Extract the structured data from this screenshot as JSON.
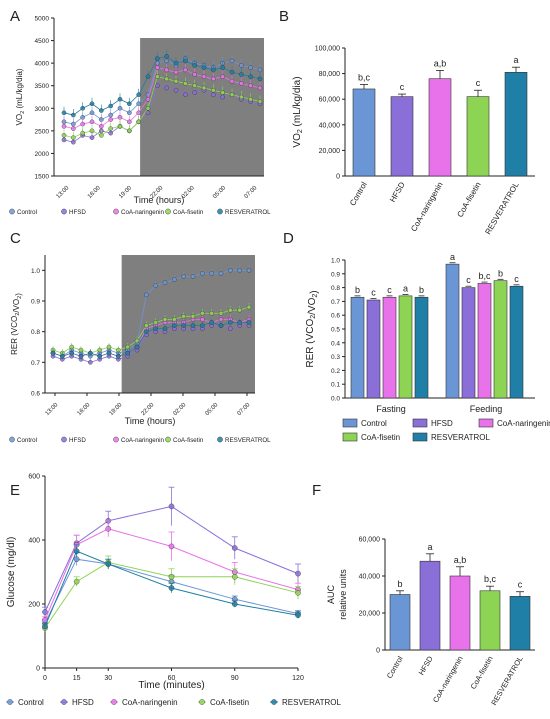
{
  "figure": {
    "colors": {
      "Control": "#6b96d6",
      "HFSD": "#8b6fd8",
      "CoA-naringenin": "#e872ea",
      "CoA-fisetin": "#8ed454",
      "RESVERATROL": "#1f7fa6",
      "shade": "#7f7f7f"
    }
  },
  "chart_data": [
    {
      "panel": "A",
      "type": "line",
      "ylabel": "VO2 (mL/kg/dia)",
      "xlabel": "Time (hours)",
      "ylim": [
        1500,
        5000
      ],
      "yticks": [
        1500,
        2000,
        2500,
        3000,
        3500,
        4000,
        4500,
        5000
      ],
      "xticks": [
        "13:00",
        "16:00",
        "19:00",
        "22:00",
        "02:00",
        "05:00",
        "07:00"
      ],
      "shaded_from": "19:00",
      "legend": [
        "Control",
        "HFSD",
        "CoA-naringenin",
        "CoA-fisetin",
        "RESVERATROL"
      ],
      "series": [
        {
          "name": "Control",
          "values": [
            2700,
            2650,
            2800,
            2900,
            2750,
            2850,
            3000,
            2900,
            3100,
            3300,
            4000,
            4050,
            3950,
            4100,
            4000,
            3950,
            3900,
            4000,
            4050,
            3950,
            3900,
            3850
          ]
        },
        {
          "name": "HFSD",
          "values": [
            2300,
            2250,
            2400,
            2350,
            2500,
            2450,
            2600,
            2500,
            2700,
            2900,
            3500,
            3450,
            3400,
            3300,
            3350,
            3400,
            3300,
            3250,
            3300,
            3200,
            3150,
            3100
          ]
        },
        {
          "name": "CoA-naringenin",
          "values": [
            2600,
            2550,
            2650,
            2700,
            2600,
            2750,
            2800,
            2700,
            2900,
            3200,
            3900,
            3850,
            3800,
            3850,
            3750,
            3700,
            3650,
            3700,
            3600,
            3550,
            3500,
            3450
          ]
        },
        {
          "name": "CoA-fisetin",
          "values": [
            2400,
            2350,
            2450,
            2500,
            2400,
            2550,
            2600,
            2500,
            2700,
            3000,
            3700,
            3650,
            3600,
            3550,
            3500,
            3450,
            3400,
            3350,
            3300,
            3250,
            3200,
            3150
          ]
        },
        {
          "name": "RESVERATROL",
          "values": [
            2900,
            2850,
            3000,
            3100,
            2950,
            3050,
            3200,
            3100,
            3300,
            3700,
            4100,
            4150,
            4000,
            4050,
            3950,
            3900,
            3850,
            3900,
            3800,
            3750,
            3700,
            3650
          ]
        }
      ]
    },
    {
      "panel": "B",
      "type": "bar",
      "ylabel": "VO2 (mL/kg/dia)",
      "ylim": [
        0,
        100000
      ],
      "yticks": [
        "0",
        "20,000",
        "40,000",
        "60,000",
        "80,000",
        "100,000"
      ],
      "categories": [
        "Control",
        "HFSD",
        "CoA-naringenin",
        "CoA-fisetin",
        "RESVERATROL"
      ],
      "values": [
        68000,
        62000,
        76000,
        62000,
        81000
      ],
      "errors": [
        3500,
        2000,
        6500,
        5000,
        4000
      ],
      "letters": [
        "b,c",
        "c",
        "a,b",
        "c",
        "a"
      ]
    },
    {
      "panel": "C",
      "type": "line",
      "ylabel": "RER (VCO2/VO2)",
      "xlabel": "Time (hours)",
      "ylim": [
        0.6,
        1.05
      ],
      "yticks": [
        "0.6",
        "0.7",
        "0.8",
        "0.9",
        "1.0"
      ],
      "xticks": [
        "13:00",
        "16:00",
        "19:00",
        "22:00",
        "02:00",
        "05:00",
        "07:00"
      ],
      "shaded_from": "19:00",
      "legend": [
        "Control",
        "HFSD",
        "CoA-naringenin",
        "CoA-fisetin",
        "RESVERATROL"
      ],
      "series": [
        {
          "name": "Control",
          "values": [
            0.73,
            0.72,
            0.74,
            0.73,
            0.72,
            0.73,
            0.74,
            0.73,
            0.74,
            0.76,
            0.92,
            0.95,
            0.96,
            0.97,
            0.98,
            0.98,
            0.99,
            0.99,
            0.99,
            1.0,
            1.0,
            1.0
          ]
        },
        {
          "name": "HFSD",
          "values": [
            0.72,
            0.71,
            0.72,
            0.71,
            0.7,
            0.71,
            0.72,
            0.71,
            0.72,
            0.74,
            0.79,
            0.8,
            0.8,
            0.81,
            0.81,
            0.81,
            0.81,
            0.82,
            0.82,
            0.81,
            0.82,
            0.82
          ]
        },
        {
          "name": "CoA-naringenin",
          "values": [
            0.73,
            0.72,
            0.73,
            0.72,
            0.73,
            0.72,
            0.73,
            0.72,
            0.73,
            0.75,
            0.81,
            0.82,
            0.83,
            0.83,
            0.83,
            0.84,
            0.84,
            0.83,
            0.84,
            0.84,
            0.83,
            0.84
          ]
        },
        {
          "name": "CoA-fisetin",
          "values": [
            0.74,
            0.73,
            0.75,
            0.74,
            0.73,
            0.74,
            0.75,
            0.74,
            0.75,
            0.77,
            0.82,
            0.83,
            0.84,
            0.84,
            0.85,
            0.85,
            0.86,
            0.86,
            0.86,
            0.87,
            0.87,
            0.88
          ]
        },
        {
          "name": "RESVERATROL",
          "values": [
            0.73,
            0.72,
            0.73,
            0.72,
            0.73,
            0.72,
            0.73,
            0.72,
            0.73,
            0.75,
            0.8,
            0.81,
            0.81,
            0.82,
            0.82,
            0.82,
            0.82,
            0.83,
            0.82,
            0.83,
            0.83,
            0.83
          ]
        }
      ]
    },
    {
      "panel": "D",
      "type": "bar",
      "ylabel": "RER (VCO2/VO2)",
      "ylim": [
        0.0,
        1.0
      ],
      "yticks": [
        "0.0",
        "0.1",
        "0.2",
        "0.3",
        "0.4",
        "0.5",
        "0.6",
        "0.7",
        "0.8",
        "0.9",
        "1.0"
      ],
      "categories": [
        "Fasting",
        "Feeding"
      ],
      "series": [
        {
          "name": "Control",
          "values": [
            0.73,
            0.97
          ],
          "letters": [
            "b",
            "a"
          ]
        },
        {
          "name": "HFSD",
          "values": [
            0.71,
            0.8
          ],
          "letters": [
            "c",
            "c"
          ]
        },
        {
          "name": "CoA-naringenin",
          "values": [
            0.73,
            0.83
          ],
          "letters": [
            "c",
            "b,c"
          ]
        },
        {
          "name": "CoA-fisetin",
          "values": [
            0.74,
            0.85
          ],
          "letters": [
            "a",
            "b"
          ]
        },
        {
          "name": "RESVERATROL",
          "values": [
            0.73,
            0.81
          ],
          "letters": [
            "b",
            "c"
          ]
        }
      ],
      "errors": [
        0.01,
        0.01
      ]
    },
    {
      "panel": "E",
      "type": "line",
      "ylabel": "Glucose (mg/dl)",
      "xlabel": "Time (minutes)",
      "ylim": [
        0,
        600
      ],
      "yticks": [
        0,
        200,
        400,
        600
      ],
      "x": [
        0,
        15,
        30,
        60,
        90,
        120
      ],
      "legend": [
        "Control",
        "HFSD",
        "CoA-naringenin",
        "CoA-fisetin",
        "RESVERATROL"
      ],
      "series": [
        {
          "name": "Control",
          "values": [
            140,
            340,
            325,
            270,
            215,
            170
          ],
          "errors": [
            10,
            20,
            15,
            20,
            10,
            10
          ]
        },
        {
          "name": "HFSD",
          "values": [
            175,
            390,
            460,
            505,
            375,
            295
          ],
          "errors": [
            15,
            25,
            30,
            60,
            35,
            30
          ]
        },
        {
          "name": "CoA-naringenin",
          "values": [
            150,
            385,
            435,
            380,
            300,
            245
          ],
          "errors": [
            10,
            30,
            25,
            45,
            30,
            20
          ]
        },
        {
          "name": "CoA-fisetin",
          "values": [
            125,
            270,
            330,
            285,
            285,
            235
          ],
          "errors": [
            10,
            15,
            20,
            25,
            25,
            20
          ]
        },
        {
          "name": "RESVERATROL",
          "values": [
            130,
            365,
            325,
            250,
            200,
            165
          ],
          "errors": [
            10,
            20,
            15,
            15,
            10,
            10
          ]
        }
      ]
    },
    {
      "panel": "F",
      "type": "bar",
      "ylabel": "AUC relative units",
      "ylim": [
        0,
        60000
      ],
      "yticks": [
        "0",
        "20,000",
        "40,000",
        "60,000"
      ],
      "categories": [
        "Control",
        "HFSD",
        "CoA-naringenin",
        "CoA-fisetin",
        "RESVERATROL"
      ],
      "values": [
        30000,
        48000,
        40000,
        32000,
        29000
      ],
      "errors": [
        2000,
        4000,
        5000,
        2500,
        2500
      ],
      "letters": [
        "b",
        "a",
        "a,b",
        "b,c",
        "c"
      ]
    }
  ]
}
